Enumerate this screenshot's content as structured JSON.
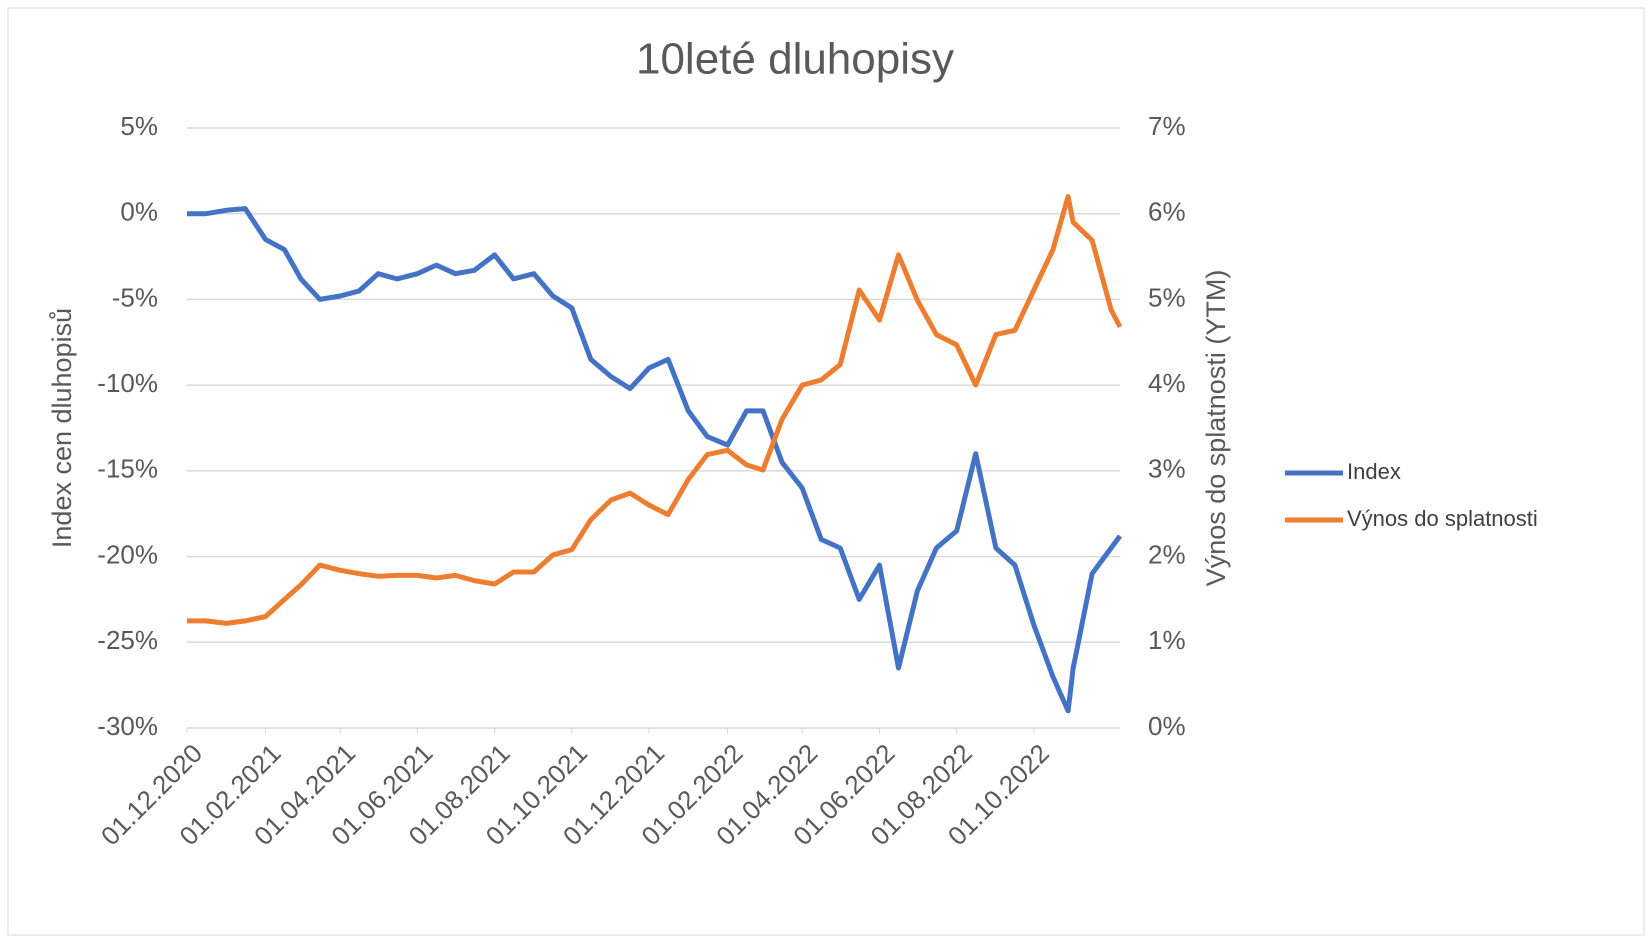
{
  "chart_data": {
    "type": "line",
    "title": "10leté dluhopisy",
    "y_label": "Index cen dluhopisů",
    "y2_label": "Výnos do splatnosti (YTM)",
    "x": [
      "01.12.2020",
      "16.12.2020",
      "01.01.2021",
      "16.01.2021",
      "01.02.2021",
      "16.02.2021",
      "01.03.2021",
      "16.03.2021",
      "01.04.2021",
      "16.04.2021",
      "01.05.2021",
      "16.05.2021",
      "01.06.2021",
      "16.06.2021",
      "01.07.2021",
      "16.07.2021",
      "01.08.2021",
      "16.08.2021",
      "01.09.2021",
      "16.09.2021",
      "01.10.2021",
      "16.10.2021",
      "01.11.2021",
      "16.11.2021",
      "01.12.2021",
      "16.12.2021",
      "01.01.2022",
      "16.01.2022",
      "01.02.2022",
      "16.02.2022",
      "01.03.2022",
      "16.03.2022",
      "01.04.2022",
      "16.04.2022",
      "01.05.2022",
      "16.05.2022",
      "01.06.2022",
      "16.06.2022",
      "01.07.2022",
      "16.07.2022",
      "01.08.2022",
      "16.08.2022",
      "01.09.2022",
      "16.09.2022",
      "01.10.2022",
      "16.10.2022",
      "28.10.2022",
      "01.11.2022",
      "16.11.2022",
      "01.12.2022",
      "08.12.2022"
    ],
    "series": [
      {
        "name": "Index",
        "color": "#4472c4",
        "axis": "y",
        "values": [
          0,
          0,
          0.2,
          0.3,
          -1.5,
          -2.1,
          -3.8,
          -5.0,
          -4.8,
          -4.5,
          -3.5,
          -3.8,
          -3.5,
          -3.0,
          -3.5,
          -3.3,
          -2.4,
          -3.8,
          -3.5,
          -4.8,
          -5.5,
          -8.5,
          -9.5,
          -10.2,
          -9.0,
          -8.5,
          -11.5,
          -13.0,
          -13.5,
          -11.5,
          -11.5,
          -14.5,
          -16.0,
          -19.0,
          -19.5,
          -22.5,
          -20.5,
          -26.5,
          -22.0,
          -19.5,
          -18.5,
          -14.0,
          -19.5,
          -20.5,
          -24.0,
          -27.0,
          -29.0,
          -26.5,
          -21.0,
          -19.5,
          -18.8
        ]
      },
      {
        "name": "Výnos do splatnosti",
        "color": "#ed7d31",
        "axis": "y2",
        "values": [
          1.25,
          1.25,
          1.22,
          1.25,
          1.3,
          1.5,
          1.67,
          1.9,
          1.84,
          1.8,
          1.77,
          1.78,
          1.78,
          1.75,
          1.78,
          1.72,
          1.68,
          1.82,
          1.82,
          2.02,
          2.08,
          2.43,
          2.66,
          2.74,
          2.6,
          2.49,
          2.9,
          3.19,
          3.24,
          3.07,
          3.01,
          3.6,
          4.0,
          4.06,
          4.24,
          5.11,
          4.76,
          5.52,
          4.99,
          4.59,
          4.47,
          4.0,
          4.59,
          4.64,
          5.11,
          5.58,
          6.2,
          5.9,
          5.69,
          4.88,
          4.68
        ]
      }
    ],
    "xlim": [
      "01.12.2020",
      "08.12.2022"
    ],
    "xticks": [
      "01.12.2020",
      "01.02.2021",
      "01.04.2021",
      "01.06.2021",
      "01.08.2021",
      "01.10.2021",
      "01.12.2021",
      "01.02.2022",
      "01.04.2022",
      "01.06.2022",
      "01.08.2022",
      "01.10.2022"
    ],
    "ylim": [
      -30,
      5
    ],
    "yticks": [
      {
        "value": -30,
        "label": "-30%"
      },
      {
        "value": -25,
        "label": "-25%"
      },
      {
        "value": -20,
        "label": "-20%"
      },
      {
        "value": -15,
        "label": "-15%"
      },
      {
        "value": -10,
        "label": "-10%"
      },
      {
        "value": -5,
        "label": "-5%"
      },
      {
        "value": 0,
        "label": "0%"
      },
      {
        "value": 5,
        "label": "5%"
      }
    ],
    "y2lim": [
      0,
      7
    ],
    "y2ticks": [
      {
        "value": 0,
        "label": "0%"
      },
      {
        "value": 1,
        "label": "1%"
      },
      {
        "value": 2,
        "label": "2%"
      },
      {
        "value": 3,
        "label": "3%"
      },
      {
        "value": 4,
        "label": "4%"
      },
      {
        "value": 5,
        "label": "5%"
      },
      {
        "value": 6,
        "label": "6%"
      },
      {
        "value": 7,
        "label": "7%"
      }
    ],
    "grid": true,
    "legend": "right"
  }
}
